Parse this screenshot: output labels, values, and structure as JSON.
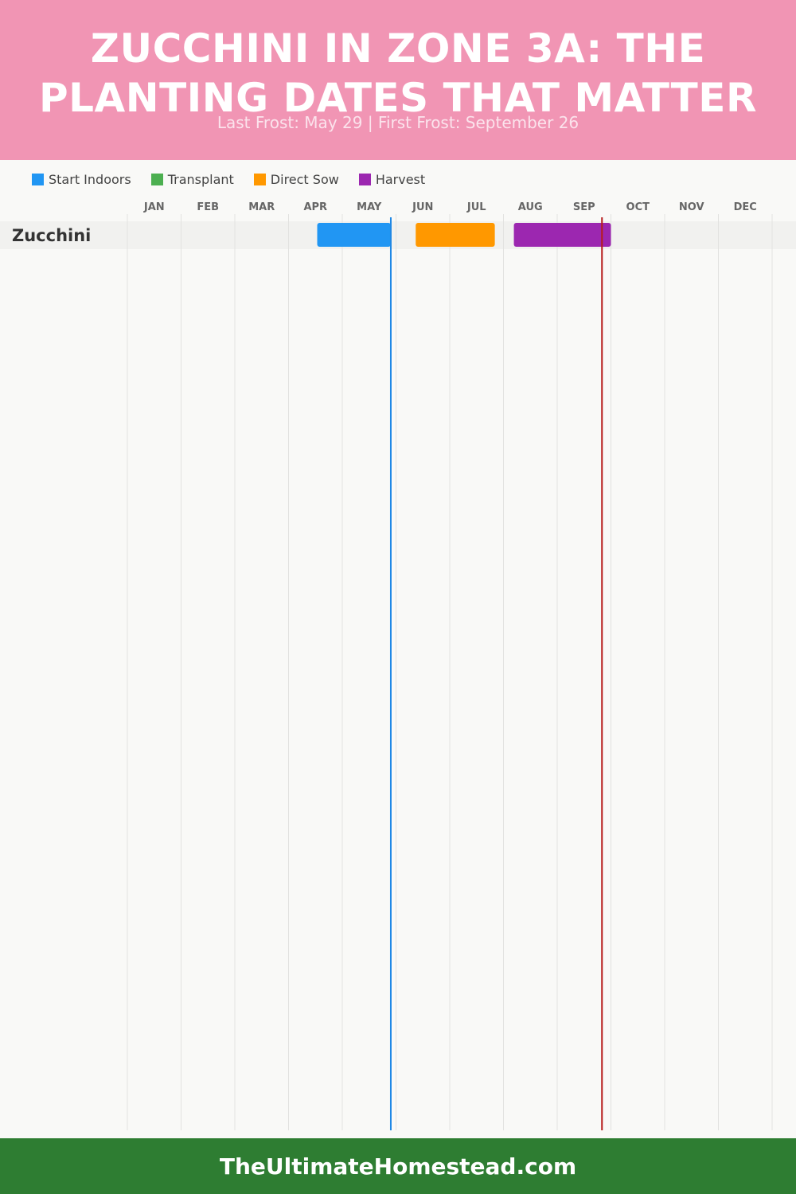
{
  "header": {
    "title": "Zucchini in Zone 3a: The Planting Dates That Matter",
    "subtitle": "Last Frost: May 29 | First Frost: September 26"
  },
  "colors": {
    "header_bg": "#f195b4",
    "footer_bg": "#2e7d32",
    "start_indoors": "#2196f3",
    "transplant": "#4caf50",
    "direct_sow": "#ff9800",
    "harvest": "#9c27b0",
    "last_frost_line": "#1e88e5",
    "first_frost_line": "#b71c1c"
  },
  "legend": [
    {
      "label": "Start Indoors",
      "color": "#2196f3"
    },
    {
      "label": "Transplant",
      "color": "#4caf50"
    },
    {
      "label": "Direct Sow",
      "color": "#ff9800"
    },
    {
      "label": "Harvest",
      "color": "#9c27b0"
    }
  ],
  "chart_data": {
    "type": "gantt",
    "months": [
      "JAN",
      "FEB",
      "MAR",
      "APR",
      "MAY",
      "JUN",
      "JUL",
      "AUG",
      "SEP",
      "OCT",
      "NOV",
      "DEC"
    ],
    "rows": [
      {
        "crop": "Zucchini",
        "bars": [
          {
            "phase": "Start Indoors",
            "start": "Apr 17",
            "end": "May 29",
            "color": "#2196f3"
          },
          {
            "phase": "Direct Sow",
            "start": "Jun 12",
            "end": "Jul 27",
            "color": "#ff9800"
          },
          {
            "phase": "Harvest",
            "start": "Aug 7",
            "end": "Oct 1",
            "color": "#9c27b0"
          }
        ]
      }
    ],
    "frost_lines": [
      {
        "name": "Last Frost",
        "date": "May 29",
        "color": "#1e88e5"
      },
      {
        "name": "First Frost",
        "date": "Sep 26",
        "color": "#b71c1c"
      }
    ]
  },
  "footer": {
    "text": "TheUltimateHomestead.com"
  }
}
